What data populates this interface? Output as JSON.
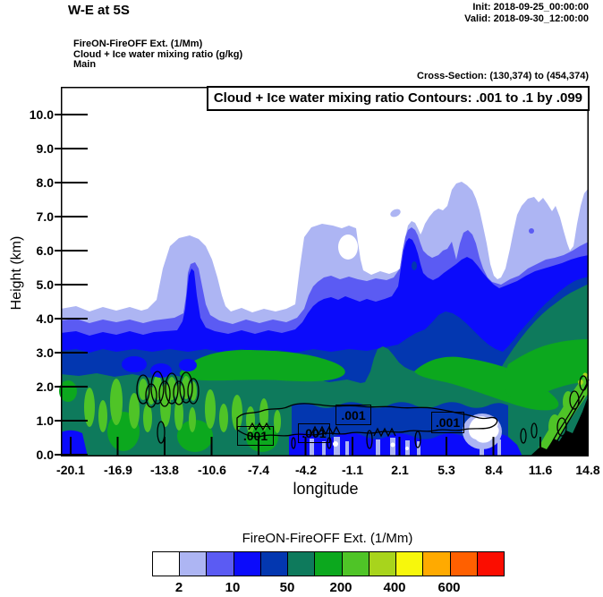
{
  "header": {
    "title": "W-E at 5S",
    "init_label": "Init: 2018-09-25_00:00:00",
    "valid_label": "Valid: 2018-09-30_12:00:00",
    "field_lines": [
      "FireON-FireOFF Ext.  (1/Mm)",
      "Cloud + Ice water mixing ratio  (g/kg)",
      "Main"
    ],
    "cross_section": "Cross-Section: (130,374) to (454,374)"
  },
  "plot": {
    "box_title": "Cloud + Ice water mixing ratio Contours: .001 to .1 by .099",
    "xlabel": "longitude",
    "ylabel": "Height (km)",
    "x_ticks": [
      "-20.1",
      "-16.9",
      "-13.8",
      "-10.6",
      "-7.4",
      "-4.2",
      "-1.1",
      "2.1",
      "5.3",
      "8.4",
      "11.6",
      "14.8"
    ],
    "y_ticks": [
      "10.0",
      "9.0",
      "8.0",
      "7.0",
      "6.0",
      "5.0",
      "4.0",
      "3.0",
      "2.0",
      "1.0",
      "0.0"
    ],
    "contour_labels": [
      ".001",
      ".001",
      ".001",
      ".001"
    ]
  },
  "colorbar": {
    "title": "FireON-FireOFF Ext.  (1/Mm)",
    "labels": [
      "2",
      "10",
      "50",
      "200",
      "400",
      "600"
    ],
    "colors": [
      "#ffffff",
      "#adb5f3",
      "#5b5bf3",
      "#0b0bfb",
      "#0337b0",
      "#0e7a5c",
      "#0ca81e",
      "#4fc427",
      "#a8d41c",
      "#f7f70c",
      "#ffaa00",
      "#ff6000",
      "#fb0d00"
    ]
  },
  "chart_data": {
    "type": "heatmap",
    "title": "Cloud + Ice water mixing ratio Contours: .001 to .1 by .099",
    "subtitle": "W-E vertical cross-section at 5S, Cross-Section: (130,374) to (454,374)",
    "xlabel": "longitude",
    "ylabel": "Height (km)",
    "x_tick_values": [
      -20.1,
      -16.9,
      -13.8,
      -10.6,
      -7.4,
      -4.2,
      -1.1,
      2.1,
      5.3,
      8.4,
      11.6,
      14.8
    ],
    "y_tick_values": [
      0,
      1,
      2,
      3,
      4,
      5,
      6,
      7,
      8,
      9,
      10
    ],
    "xlim": [
      -20.1,
      14.8
    ],
    "ylim": [
      0,
      10.8
    ],
    "grid": false,
    "fill_field": "FireON-FireOFF Ext. (1/Mm)",
    "fill_palette": [
      "#ffffff",
      "#adb5f3",
      "#5b5bf3",
      "#0b0bfb",
      "#0337b0",
      "#0e7a5c",
      "#0ca81e",
      "#4fc427",
      "#a8d41c",
      "#f7f70c",
      "#ffaa00",
      "#ff6000",
      "#fb0d00"
    ],
    "fill_labeled_levels": [
      2,
      10,
      50,
      200,
      400,
      600
    ],
    "line_contour_field": "Cloud + Ice water mixing ratio (g/kg)",
    "line_contour_levels": [
      0.001,
      0.1
    ],
    "line_contour_visible_labels": [
      ".001",
      ".001",
      ".001",
      ".001"
    ],
    "regions": [
      {
        "band": "white (clear)",
        "desc": "above ~4.3 km west of -13; above ~7-8 km elsewhere; holes near (-1,6) and notch near 8.5E"
      },
      {
        "band": "lavender top (km) vs lon",
        "points": [
          [
            -20.1,
            4.3
          ],
          [
            -12.3,
            6.4
          ],
          [
            -9.2,
            4.4
          ],
          [
            -4.6,
            4.4
          ],
          [
            -2.8,
            6.8
          ],
          [
            -0.1,
            5.4
          ],
          [
            3.1,
            6.9
          ],
          [
            6.4,
            8.0
          ],
          [
            8.8,
            5.2
          ],
          [
            11.2,
            7.6
          ],
          [
            13.6,
            6.0
          ],
          [
            14.8,
            7.8
          ]
        ]
      },
      {
        "band": "violet top (km) vs lon",
        "points": [
          [
            -20.1,
            3.9
          ],
          [
            -12.5,
            5.5
          ],
          [
            -5,
            3.9
          ],
          [
            -2,
            5.3
          ],
          [
            3.1,
            6.6
          ],
          [
            8,
            5.1
          ],
          [
            14.8,
            6.3
          ]
        ]
      },
      {
        "band": "blue top (km) vs lon",
        "points": [
          [
            -20.1,
            3.6
          ],
          [
            -12.5,
            5.4
          ],
          [
            -5,
            3.6
          ],
          [
            -1.5,
            4.6
          ],
          [
            3.2,
            6.3
          ],
          [
            8,
            5.0
          ],
          [
            14.8,
            5.9
          ]
        ]
      },
      {
        "band": "dark-blue top (km) vs lon",
        "points": [
          [
            -20.1,
            3.0
          ],
          [
            0,
            3.0
          ],
          [
            1.5,
            4.2
          ],
          [
            8,
            3.6
          ],
          [
            14.8,
            5.3
          ]
        ]
      },
      {
        "band": "teal top (km) vs lon",
        "points": [
          [
            -20.1,
            2.4
          ],
          [
            0.7,
            3.2
          ],
          [
            5,
            2.3
          ],
          [
            14.8,
            5.1
          ]
        ]
      },
      {
        "band": "medium green blob",
        "desc": "elongated area lon -12.3 to -1.2, 2.1-3.2 km"
      },
      {
        "band": "medium green swath",
        "desc": "diagonal area lon 1.5 to 14.8, 1.3-3.4 km"
      },
      {
        "band": "bright green",
        "desc": "low-level streaks lon -19 to -5 below 2.2 km; circled cells near -15 to -11 at 1.5-2.3 km; band along terrain lon 11.5-14.8 below 2.5 km"
      },
      {
        "band": "white/lavender pockets",
        "desc": "near-surface pockets around lon 6.7-7.6 below 1.2 km"
      },
      {
        "band": "terrain (black)",
        "desc": "rises from lon ~10.9 at surface to ~1.8 km at 14.8"
      }
    ]
  }
}
